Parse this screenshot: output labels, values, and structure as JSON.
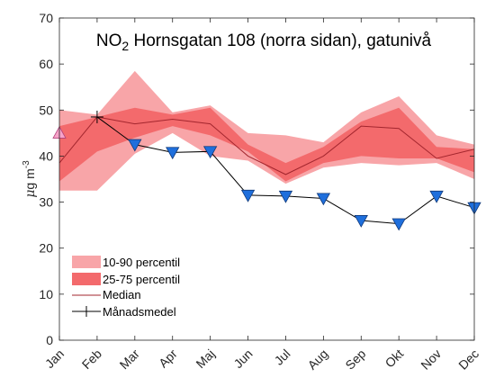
{
  "chart_data": {
    "type": "area",
    "title": {
      "prefix": "NO",
      "subscript": "2",
      "suffix": " Hornsgatan 108 (norra sidan), gatunivå"
    },
    "ylabel": {
      "mu": "μ",
      "unit": "g m",
      "exponent": "-3"
    },
    "ylim": [
      0,
      70
    ],
    "yticks": [
      "0",
      "10",
      "20",
      "30",
      "40",
      "50",
      "60",
      "70"
    ],
    "categories": [
      "Jan",
      "Feb",
      "Mar",
      "Apr",
      "Maj",
      "Jun",
      "Jul",
      "Aug",
      "Sep",
      "Okt",
      "Nov",
      "Dec"
    ],
    "bands": {
      "p10": [
        32.5,
        32.5,
        40.5,
        45.0,
        40.0,
        39.0,
        34.0,
        37.5,
        38.5,
        38.0,
        38.5,
        35.0
      ],
      "p90": [
        50.0,
        49.0,
        58.5,
        49.5,
        51.0,
        45.0,
        44.5,
        43.0,
        49.5,
        53.0,
        44.5,
        42.5
      ],
      "p25": [
        34.5,
        41.0,
        44.0,
        46.5,
        44.5,
        41.0,
        34.5,
        38.5,
        40.0,
        39.5,
        39.5,
        36.5
      ],
      "p75": [
        46.5,
        48.5,
        50.5,
        49.0,
        50.5,
        42.5,
        38.5,
        42.0,
        47.5,
        50.5,
        42.0,
        41.5
      ]
    },
    "series": [
      {
        "name": "Median",
        "values": [
          38.5,
          48.5,
          47.0,
          48.0,
          47.0,
          40.0,
          36.0,
          40.0,
          46.5,
          46.0,
          39.5,
          41.5
        ]
      },
      {
        "name": "Månadsmedel",
        "values": [
          null,
          48.5,
          42.5,
          40.8,
          41.0,
          31.5,
          31.3,
          30.8,
          26.0,
          25.3,
          31.3,
          28.8
        ]
      }
    ],
    "markers": {
      "pink_up": [
        45.0,
        48.5,
        null,
        null,
        null,
        null,
        null,
        null,
        null,
        null,
        null,
        null
      ],
      "blue_down": [
        null,
        null,
        42.5,
        40.8,
        41.0,
        31.5,
        31.3,
        30.8,
        26.0,
        25.3,
        31.3,
        28.8
      ]
    },
    "legend": {
      "position": "bottom-left",
      "entries": [
        "10-90 percentil",
        "25-75 percentil",
        "Median",
        "Månadsmedel"
      ]
    },
    "colors": {
      "band90": "#f8a5a8",
      "band75": "#f36a6c",
      "median": "#a3262e",
      "mean": "#000000",
      "pink_marker": "#f7a3c9",
      "blue_marker": "#1f6fdc"
    },
    "grid": false
  }
}
